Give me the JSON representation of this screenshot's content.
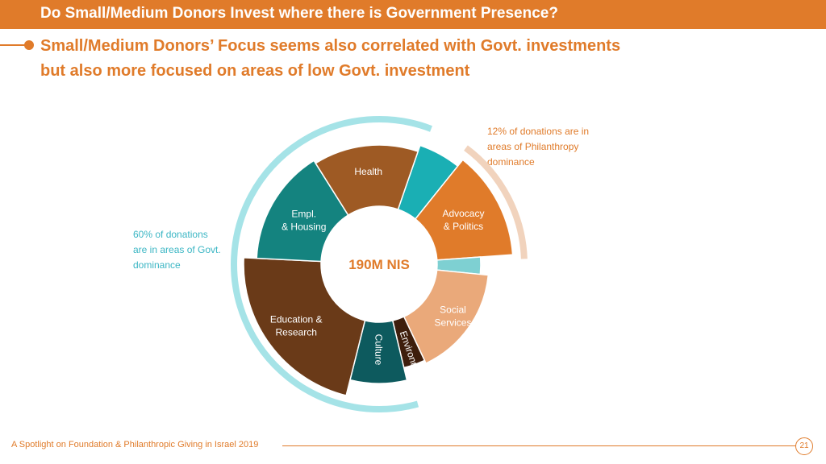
{
  "header": {
    "title": "Do Small/Medium Donors Invest where there is Government Presence?"
  },
  "subtitle": {
    "line1": "Small/Medium Donors’ Focus seems also correlated with Govt. investments",
    "line2": "but also more focused on areas of low Govt. investment"
  },
  "annotations": {
    "left": [
      "60% of donations",
      "are in areas of  Govt.",
      "dominance"
    ],
    "right": [
      "12%  of donations are in",
      "areas of Philanthropy",
      "dominance"
    ]
  },
  "footer": {
    "text": "A Spotlight on Foundation & Philanthropic Giving in Israel 2019",
    "page": "21"
  },
  "chart_data": {
    "type": "pie",
    "center_label": "190M NIS",
    "slices": [
      {
        "label": "",
        "value": 5,
        "color": "#1aafb4"
      },
      {
        "label": "Advocacy\n& Politics",
        "value": 12,
        "color": "#e07b2a"
      },
      {
        "label": "",
        "value": 2.5,
        "color": "#7ed0d2"
      },
      {
        "label": "Social\nServices",
        "value": 15,
        "color": "#eaa97a"
      },
      {
        "label": "Environment",
        "value": 3,
        "color": "#3e1e0c"
      },
      {
        "label": "Culture",
        "value": 7,
        "color": "#0d5a5e"
      },
      {
        "label": "Education  &\nResearch",
        "value": 20,
        "color": "#6a3a18"
      },
      {
        "label": "Empl.\n& Housing",
        "value": 14,
        "color": "#14837f"
      },
      {
        "label": "Health",
        "value": 13,
        "color": "#9e5a24"
      }
    ],
    "brackets": [
      {
        "annotation": "left",
        "from_slice": 5,
        "to_slice": 8,
        "color": "#a5e3e7"
      },
      {
        "annotation": "right",
        "from_slice": 1,
        "to_slice": 1,
        "color": "#f1d3bd"
      }
    ]
  }
}
